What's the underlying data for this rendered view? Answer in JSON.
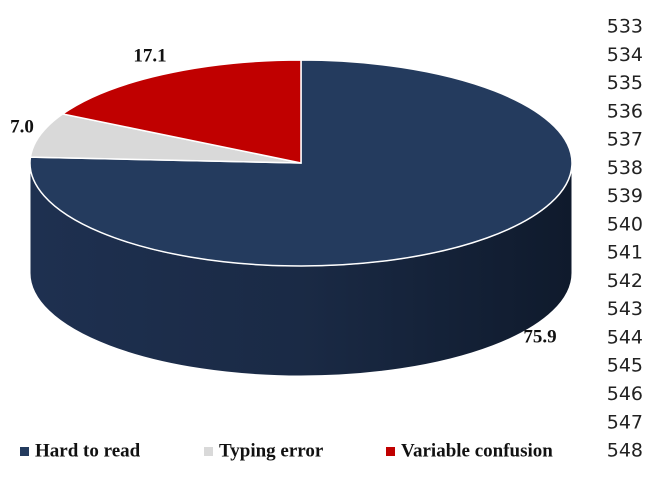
{
  "chart_data": {
    "type": "pie",
    "categories": [
      "Hard to read",
      "Typing error",
      "Variable confusion"
    ],
    "values": [
      75.9,
      7.0,
      17.1
    ],
    "value_labels": [
      "75.9",
      "7.0",
      "17.1"
    ],
    "colors": [
      "#243b5e",
      "#d9d9d9",
      "#c00000"
    ],
    "legend": "bottom"
  },
  "line_numbers": [
    "533",
    "534",
    "535",
    "536",
    "537",
    "538",
    "539",
    "540",
    "541",
    "542",
    "543",
    "544",
    "545",
    "546",
    "547",
    "548"
  ]
}
